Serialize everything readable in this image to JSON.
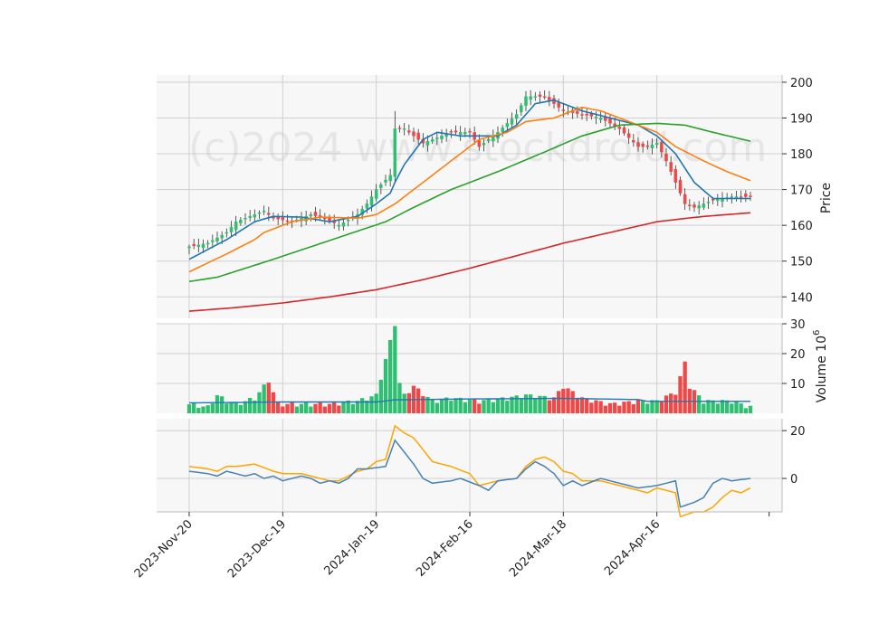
{
  "chart_data": {
    "type": "candlestick",
    "watermark": "(c)2024 www.stockdroid.com",
    "colors": {
      "up": "#2fbf71",
      "down": "#f04747",
      "ma5": "#1f77b4",
      "ma10": "#ff7f0e",
      "ma20": "#2ca02c",
      "ma60": "#d62728",
      "macd_line": "#4682b4",
      "signal_line": "#ffa500",
      "volume_ma": "#1f77b4",
      "grid": "#d0d0d0",
      "panel_bg": "#f7f7f7"
    },
    "x_ticks": [
      "2023-Nov-20",
      "2023-Dec-19",
      "2024-Jan-19",
      "2024-Feb-16",
      "2024-Mar-18",
      "2024-Apr-16"
    ],
    "x_tick_index": [
      0,
      20,
      40,
      60,
      80,
      100
    ],
    "n_bars": 121,
    "price_panel": {
      "ylabel": "Price",
      "ylim": [
        134,
        202
      ],
      "yticks": [
        "140",
        "150",
        "160",
        "170",
        "180",
        "190",
        "200"
      ],
      "ohlc_anchors": [
        [
          0,
          154
        ],
        [
          4,
          155
        ],
        [
          8,
          158
        ],
        [
          10,
          161
        ],
        [
          14,
          163
        ],
        [
          16,
          164
        ],
        [
          18,
          162
        ],
        [
          22,
          161
        ],
        [
          26,
          163
        ],
        [
          29,
          162
        ],
        [
          32,
          160
        ],
        [
          36,
          163
        ],
        [
          38,
          166
        ],
        [
          40,
          170
        ],
        [
          43,
          174
        ],
        [
          44,
          187
        ],
        [
          46,
          187
        ],
        [
          50,
          183
        ],
        [
          56,
          186
        ],
        [
          60,
          186
        ],
        [
          62,
          182
        ],
        [
          66,
          186
        ],
        [
          70,
          191
        ],
        [
          72,
          196
        ],
        [
          76,
          196
        ],
        [
          80,
          192
        ],
        [
          84,
          191
        ],
        [
          88,
          190
        ],
        [
          92,
          187
        ],
        [
          96,
          182
        ],
        [
          98,
          182
        ],
        [
          100,
          183
        ],
        [
          102,
          178
        ],
        [
          106,
          166
        ],
        [
          108,
          165
        ],
        [
          112,
          167
        ],
        [
          116,
          168
        ],
        [
          120,
          168
        ]
      ],
      "ma_series": [
        {
          "key": "ma5",
          "anchors": [
            [
              0,
              150.5
            ],
            [
              8,
              156
            ],
            [
              14,
              161
            ],
            [
              18,
              162.5
            ],
            [
              24,
              162.3
            ],
            [
              30,
              161
            ],
            [
              36,
              162.5
            ],
            [
              40,
              166
            ],
            [
              43,
              169
            ],
            [
              44,
              172
            ],
            [
              46,
              177
            ],
            [
              50,
              184
            ],
            [
              53,
              186
            ],
            [
              58,
              185
            ],
            [
              66,
              185
            ],
            [
              70,
              188
            ],
            [
              74,
              194
            ],
            [
              78,
              195
            ],
            [
              84,
              192
            ],
            [
              90,
              190
            ],
            [
              96,
              188
            ],
            [
              100,
              185
            ],
            [
              104,
              180
            ],
            [
              108,
              172
            ],
            [
              112,
              167.5
            ],
            [
              120,
              167.5
            ]
          ]
        },
        {
          "key": "ma10",
          "anchors": [
            [
              0,
              147
            ],
            [
              8,
              152
            ],
            [
              14,
              156
            ],
            [
              16,
              158
            ],
            [
              22,
              161
            ],
            [
              28,
              162.3
            ],
            [
              36,
              162
            ],
            [
              40,
              163
            ],
            [
              44,
              166
            ],
            [
              52,
              174
            ],
            [
              58,
              180
            ],
            [
              62,
              184
            ],
            [
              68,
              186
            ],
            [
              72,
              189
            ],
            [
              78,
              190
            ],
            [
              84,
              193
            ],
            [
              88,
              192
            ],
            [
              94,
              189
            ],
            [
              100,
              186
            ],
            [
              104,
              182
            ],
            [
              110,
              178
            ],
            [
              115,
              175
            ],
            [
              120,
              172.5
            ]
          ]
        },
        {
          "key": "ma20",
          "anchors": [
            [
              0,
              144.3
            ],
            [
              6,
              145.5
            ],
            [
              12,
              148
            ],
            [
              18,
              150.5
            ],
            [
              26,
              154
            ],
            [
              34,
              157.5
            ],
            [
              42,
              161
            ],
            [
              48,
              165
            ],
            [
              56,
              170
            ],
            [
              66,
              175
            ],
            [
              76,
              180.5
            ],
            [
              84,
              185
            ],
            [
              92,
              188
            ],
            [
              100,
              188.5
            ],
            [
              106,
              188
            ],
            [
              112,
              186
            ],
            [
              120,
              183.5
            ]
          ]
        },
        {
          "key": "ma60",
          "anchors": [
            [
              0,
              136
            ],
            [
              10,
              137
            ],
            [
              20,
              138.3
            ],
            [
              30,
              140
            ],
            [
              40,
              142
            ],
            [
              50,
              144.8
            ],
            [
              60,
              148
            ],
            [
              70,
              151.5
            ],
            [
              80,
              155
            ],
            [
              90,
              158
            ],
            [
              100,
              161
            ],
            [
              110,
              162.5
            ],
            [
              120,
              163.5
            ]
          ]
        }
      ]
    },
    "volume_panel": {
      "ylabel": "Volume  10^6",
      "ylim": [
        0,
        30
      ],
      "yticks": [
        "10",
        "20",
        "30"
      ],
      "anchors": [
        [
          0,
          3
        ],
        [
          4,
          2
        ],
        [
          6,
          6
        ],
        [
          8,
          4
        ],
        [
          10,
          3
        ],
        [
          14,
          5
        ],
        [
          17,
          11
        ],
        [
          19,
          3
        ],
        [
          22,
          3
        ],
        [
          26,
          3
        ],
        [
          30,
          3
        ],
        [
          36,
          4
        ],
        [
          40,
          6
        ],
        [
          44,
          30
        ],
        [
          45,
          10
        ],
        [
          46,
          6
        ],
        [
          48,
          9
        ],
        [
          52,
          4
        ],
        [
          56,
          5
        ],
        [
          62,
          4
        ],
        [
          68,
          5
        ],
        [
          72,
          6
        ],
        [
          78,
          5
        ],
        [
          80,
          9
        ],
        [
          84,
          5
        ],
        [
          90,
          3
        ],
        [
          96,
          4
        ],
        [
          100,
          4
        ],
        [
          104,
          7
        ],
        [
          106,
          17
        ],
        [
          107,
          9
        ],
        [
          110,
          4
        ],
        [
          116,
          4
        ],
        [
          120,
          2
        ]
      ],
      "ma_anchors": [
        [
          0,
          3.5
        ],
        [
          20,
          3.8
        ],
        [
          40,
          3.8
        ],
        [
          44,
          4.5
        ],
        [
          60,
          4.8
        ],
        [
          80,
          5
        ],
        [
          96,
          4.6
        ],
        [
          98,
          4
        ],
        [
          120,
          4
        ]
      ]
    },
    "macd_panel": {
      "ylim": [
        -14,
        25
      ],
      "yticks": [
        "0",
        "20"
      ],
      "macd_anchors": [
        [
          0,
          3
        ],
        [
          4,
          2
        ],
        [
          6,
          1
        ],
        [
          8,
          3
        ],
        [
          12,
          1
        ],
        [
          14,
          2
        ],
        [
          16,
          0
        ],
        [
          18,
          1
        ],
        [
          20,
          -1
        ],
        [
          22,
          0
        ],
        [
          24,
          1
        ],
        [
          26,
          0
        ],
        [
          28,
          -2
        ],
        [
          30,
          -1
        ],
        [
          32,
          -2
        ],
        [
          34,
          0
        ],
        [
          36,
          4
        ],
        [
          38,
          4
        ],
        [
          42,
          5
        ],
        [
          44,
          16
        ],
        [
          46,
          11
        ],
        [
          48,
          6
        ],
        [
          50,
          0
        ],
        [
          52,
          -2
        ],
        [
          56,
          -1
        ],
        [
          58,
          0
        ],
        [
          62,
          -3
        ],
        [
          64,
          -5
        ],
        [
          66,
          -1
        ],
        [
          70,
          0
        ],
        [
          72,
          4
        ],
        [
          74,
          7
        ],
        [
          76,
          5
        ],
        [
          78,
          2
        ],
        [
          80,
          -3
        ],
        [
          82,
          -1
        ],
        [
          84,
          -3
        ],
        [
          88,
          0
        ],
        [
          92,
          -2
        ],
        [
          96,
          -4
        ],
        [
          100,
          -3
        ],
        [
          104,
          -1
        ],
        [
          105,
          -12
        ],
        [
          108,
          -10
        ],
        [
          110,
          -8
        ],
        [
          112,
          -2
        ],
        [
          114,
          0
        ],
        [
          116,
          -1
        ],
        [
          120,
          0
        ]
      ],
      "signal_anchors": [
        [
          0,
          5
        ],
        [
          4,
          4
        ],
        [
          6,
          3
        ],
        [
          8,
          5
        ],
        [
          10,
          5
        ],
        [
          14,
          6
        ],
        [
          18,
          3
        ],
        [
          20,
          2
        ],
        [
          24,
          2
        ],
        [
          26,
          1
        ],
        [
          30,
          -1
        ],
        [
          32,
          -1
        ],
        [
          36,
          3
        ],
        [
          38,
          4
        ],
        [
          40,
          7
        ],
        [
          42,
          8
        ],
        [
          44,
          22
        ],
        [
          46,
          19
        ],
        [
          48,
          17
        ],
        [
          50,
          12
        ],
        [
          52,
          7
        ],
        [
          56,
          5
        ],
        [
          60,
          2
        ],
        [
          62,
          -3
        ],
        [
          66,
          -1
        ],
        [
          70,
          0
        ],
        [
          72,
          5
        ],
        [
          74,
          8
        ],
        [
          76,
          9
        ],
        [
          78,
          7
        ],
        [
          80,
          3
        ],
        [
          82,
          2
        ],
        [
          84,
          -1
        ],
        [
          88,
          -1
        ],
        [
          92,
          -3
        ],
        [
          96,
          -5
        ],
        [
          98,
          -6
        ],
        [
          100,
          -4
        ],
        [
          102,
          -5
        ],
        [
          104,
          -6
        ],
        [
          105,
          -16
        ],
        [
          108,
          -14
        ],
        [
          110,
          -14
        ],
        [
          112,
          -12
        ],
        [
          114,
          -8
        ],
        [
          116,
          -5
        ],
        [
          118,
          -6
        ],
        [
          120,
          -4
        ]
      ]
    }
  }
}
